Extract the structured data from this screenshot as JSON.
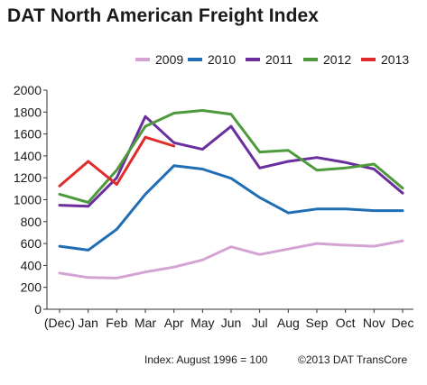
{
  "chart_data": {
    "type": "line",
    "title": "DAT North American Freight Index",
    "xlabel": "",
    "ylabel": "",
    "categories": [
      "(Dec)",
      "Jan",
      "Feb",
      "Mar",
      "Apr",
      "May",
      "Jun",
      "Jul",
      "Aug",
      "Sep",
      "Oct",
      "Nov",
      "Dec"
    ],
    "ylim": [
      0,
      2000
    ],
    "yticks": [
      "0",
      "200",
      "400",
      "600",
      "800",
      "1000",
      "1200",
      "1400",
      "1600",
      "1800",
      "2000"
    ],
    "grid": false,
    "legend_position": "top-right",
    "series": [
      {
        "name": "2009",
        "color": "#d4a3d4",
        "values": [
          330,
          290,
          285,
          340,
          385,
          450,
          570,
          500,
          550,
          600,
          585,
          575,
          625
        ]
      },
      {
        "name": "2010",
        "color": "#1f6eb4",
        "values": [
          575,
          540,
          730,
          1050,
          1310,
          1280,
          1195,
          1020,
          880,
          915,
          915,
          900,
          900
        ]
      },
      {
        "name": "2011",
        "color": "#6a2e9e",
        "values": [
          950,
          940,
          1200,
          1760,
          1520,
          1460,
          1670,
          1290,
          1350,
          1385,
          1340,
          1280,
          1060
        ]
      },
      {
        "name": "2012",
        "color": "#4c9a3c",
        "values": [
          1050,
          975,
          1270,
          1670,
          1790,
          1815,
          1780,
          1435,
          1450,
          1270,
          1290,
          1325,
          1105
        ]
      },
      {
        "name": "2013",
        "color": "#e02b2b",
        "values": [
          1125,
          1350,
          1140,
          1570,
          1490,
          null,
          null,
          null,
          null,
          null,
          null,
          null,
          null
        ]
      }
    ]
  },
  "footer": {
    "index_note": "Index: August  1996 = 100",
    "copyright": "©2013 DAT TransCore"
  }
}
